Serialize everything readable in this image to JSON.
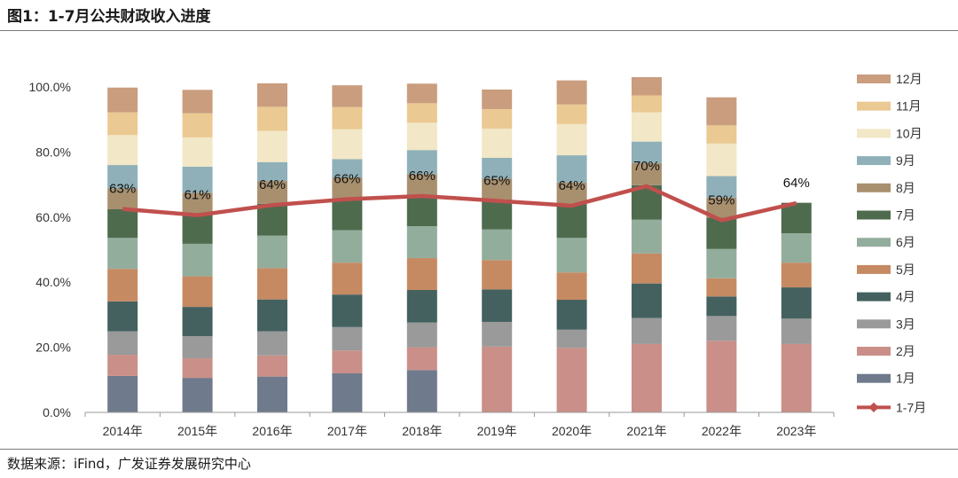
{
  "header": {
    "title": "图1：1-7月公共财政收入进度"
  },
  "footer": {
    "source": "数据来源：iFind，广发证券发展研究中心"
  },
  "colors": {
    "1月": "#6f7a8c",
    "2月": "#c98f88",
    "3月": "#9a9a9a",
    "4月": "#44615f",
    "5月": "#c58a62",
    "6月": "#93ad9c",
    "7月": "#4f6b4e",
    "8月": "#a8906f",
    "9月": "#8fb0b8",
    "10月": "#f2e7c6",
    "11月": "#ebc992",
    "12月": "#c99d7e",
    "1-7月": "#c0504d"
  },
  "chart_data": {
    "type": "bar",
    "stacked": true,
    "title": "1-7月公共财政收入进度",
    "categories": [
      "2014年",
      "2015年",
      "2016年",
      "2017年",
      "2018年",
      "2019年",
      "2020年",
      "2021年",
      "2022年",
      "2023年"
    ],
    "y_ticks": [
      "0.0%",
      "20.0%",
      "40.0%",
      "60.0%",
      "80.0%",
      "100.0%"
    ],
    "ylim": [
      0,
      100
    ],
    "grid": false,
    "legend_position": "right",
    "series": [
      {
        "name": "1月",
        "values": [
          11.2,
          10.6,
          11.0,
          12.0,
          13.0,
          0,
          0,
          0,
          0,
          0
        ]
      },
      {
        "name": "2月",
        "values": [
          6.5,
          6.0,
          6.5,
          7.0,
          7.0,
          20.2,
          19.8,
          21.0,
          22.0,
          21.0
        ]
      },
      {
        "name": "3月",
        "values": [
          7.2,
          6.8,
          7.4,
          7.2,
          7.6,
          7.6,
          5.6,
          8.0,
          7.6,
          7.8
        ]
      },
      {
        "name": "4月",
        "values": [
          9.2,
          9.0,
          9.8,
          10.0,
          10.0,
          10.0,
          9.2,
          10.6,
          6.0,
          9.6
        ]
      },
      {
        "name": "5月",
        "values": [
          10.0,
          9.4,
          9.6,
          9.8,
          9.8,
          9.0,
          8.4,
          9.2,
          5.6,
          7.6
        ]
      },
      {
        "name": "6月",
        "values": [
          9.5,
          10.0,
          10.0,
          10.0,
          9.8,
          9.4,
          10.6,
          10.4,
          9.0,
          9.0
        ]
      },
      {
        "name": "7月",
        "values": [
          8.8,
          8.9,
          9.8,
          9.4,
          9.4,
          9.2,
          10.4,
          10.6,
          9.6,
          9.4
        ]
      },
      {
        "name": "8月",
        "values": [
          6.4,
          6.8,
          7.0,
          6.8,
          6.6,
          6.4,
          6.6,
          6.8,
          6.2,
          0
        ]
      },
      {
        "name": "9月",
        "values": [
          7.2,
          8.0,
          5.8,
          5.6,
          7.4,
          6.4,
          8.4,
          6.6,
          6.6,
          0
        ]
      },
      {
        "name": "10月",
        "values": [
          9.2,
          9.0,
          9.6,
          9.2,
          8.4,
          9.0,
          9.6,
          9.0,
          10.0,
          0
        ]
      },
      {
        "name": "11月",
        "values": [
          7.0,
          7.4,
          7.4,
          6.8,
          6.0,
          6.0,
          6.0,
          5.2,
          5.6,
          0
        ]
      },
      {
        "name": "12月",
        "values": [
          7.6,
          7.2,
          7.2,
          6.7,
          6.0,
          6.0,
          7.4,
          5.6,
          8.6,
          0
        ]
      }
    ],
    "line": {
      "name": "1-7月",
      "values": [
        62.5,
        60.6,
        63.7,
        65.5,
        66.5,
        65.0,
        63.5,
        69.5,
        59.0,
        64.3
      ],
      "labels": [
        "63%",
        "61%",
        "64%",
        "66%",
        "66%",
        "65%",
        "64%",
        "70%",
        "59%",
        "64%"
      ]
    }
  }
}
